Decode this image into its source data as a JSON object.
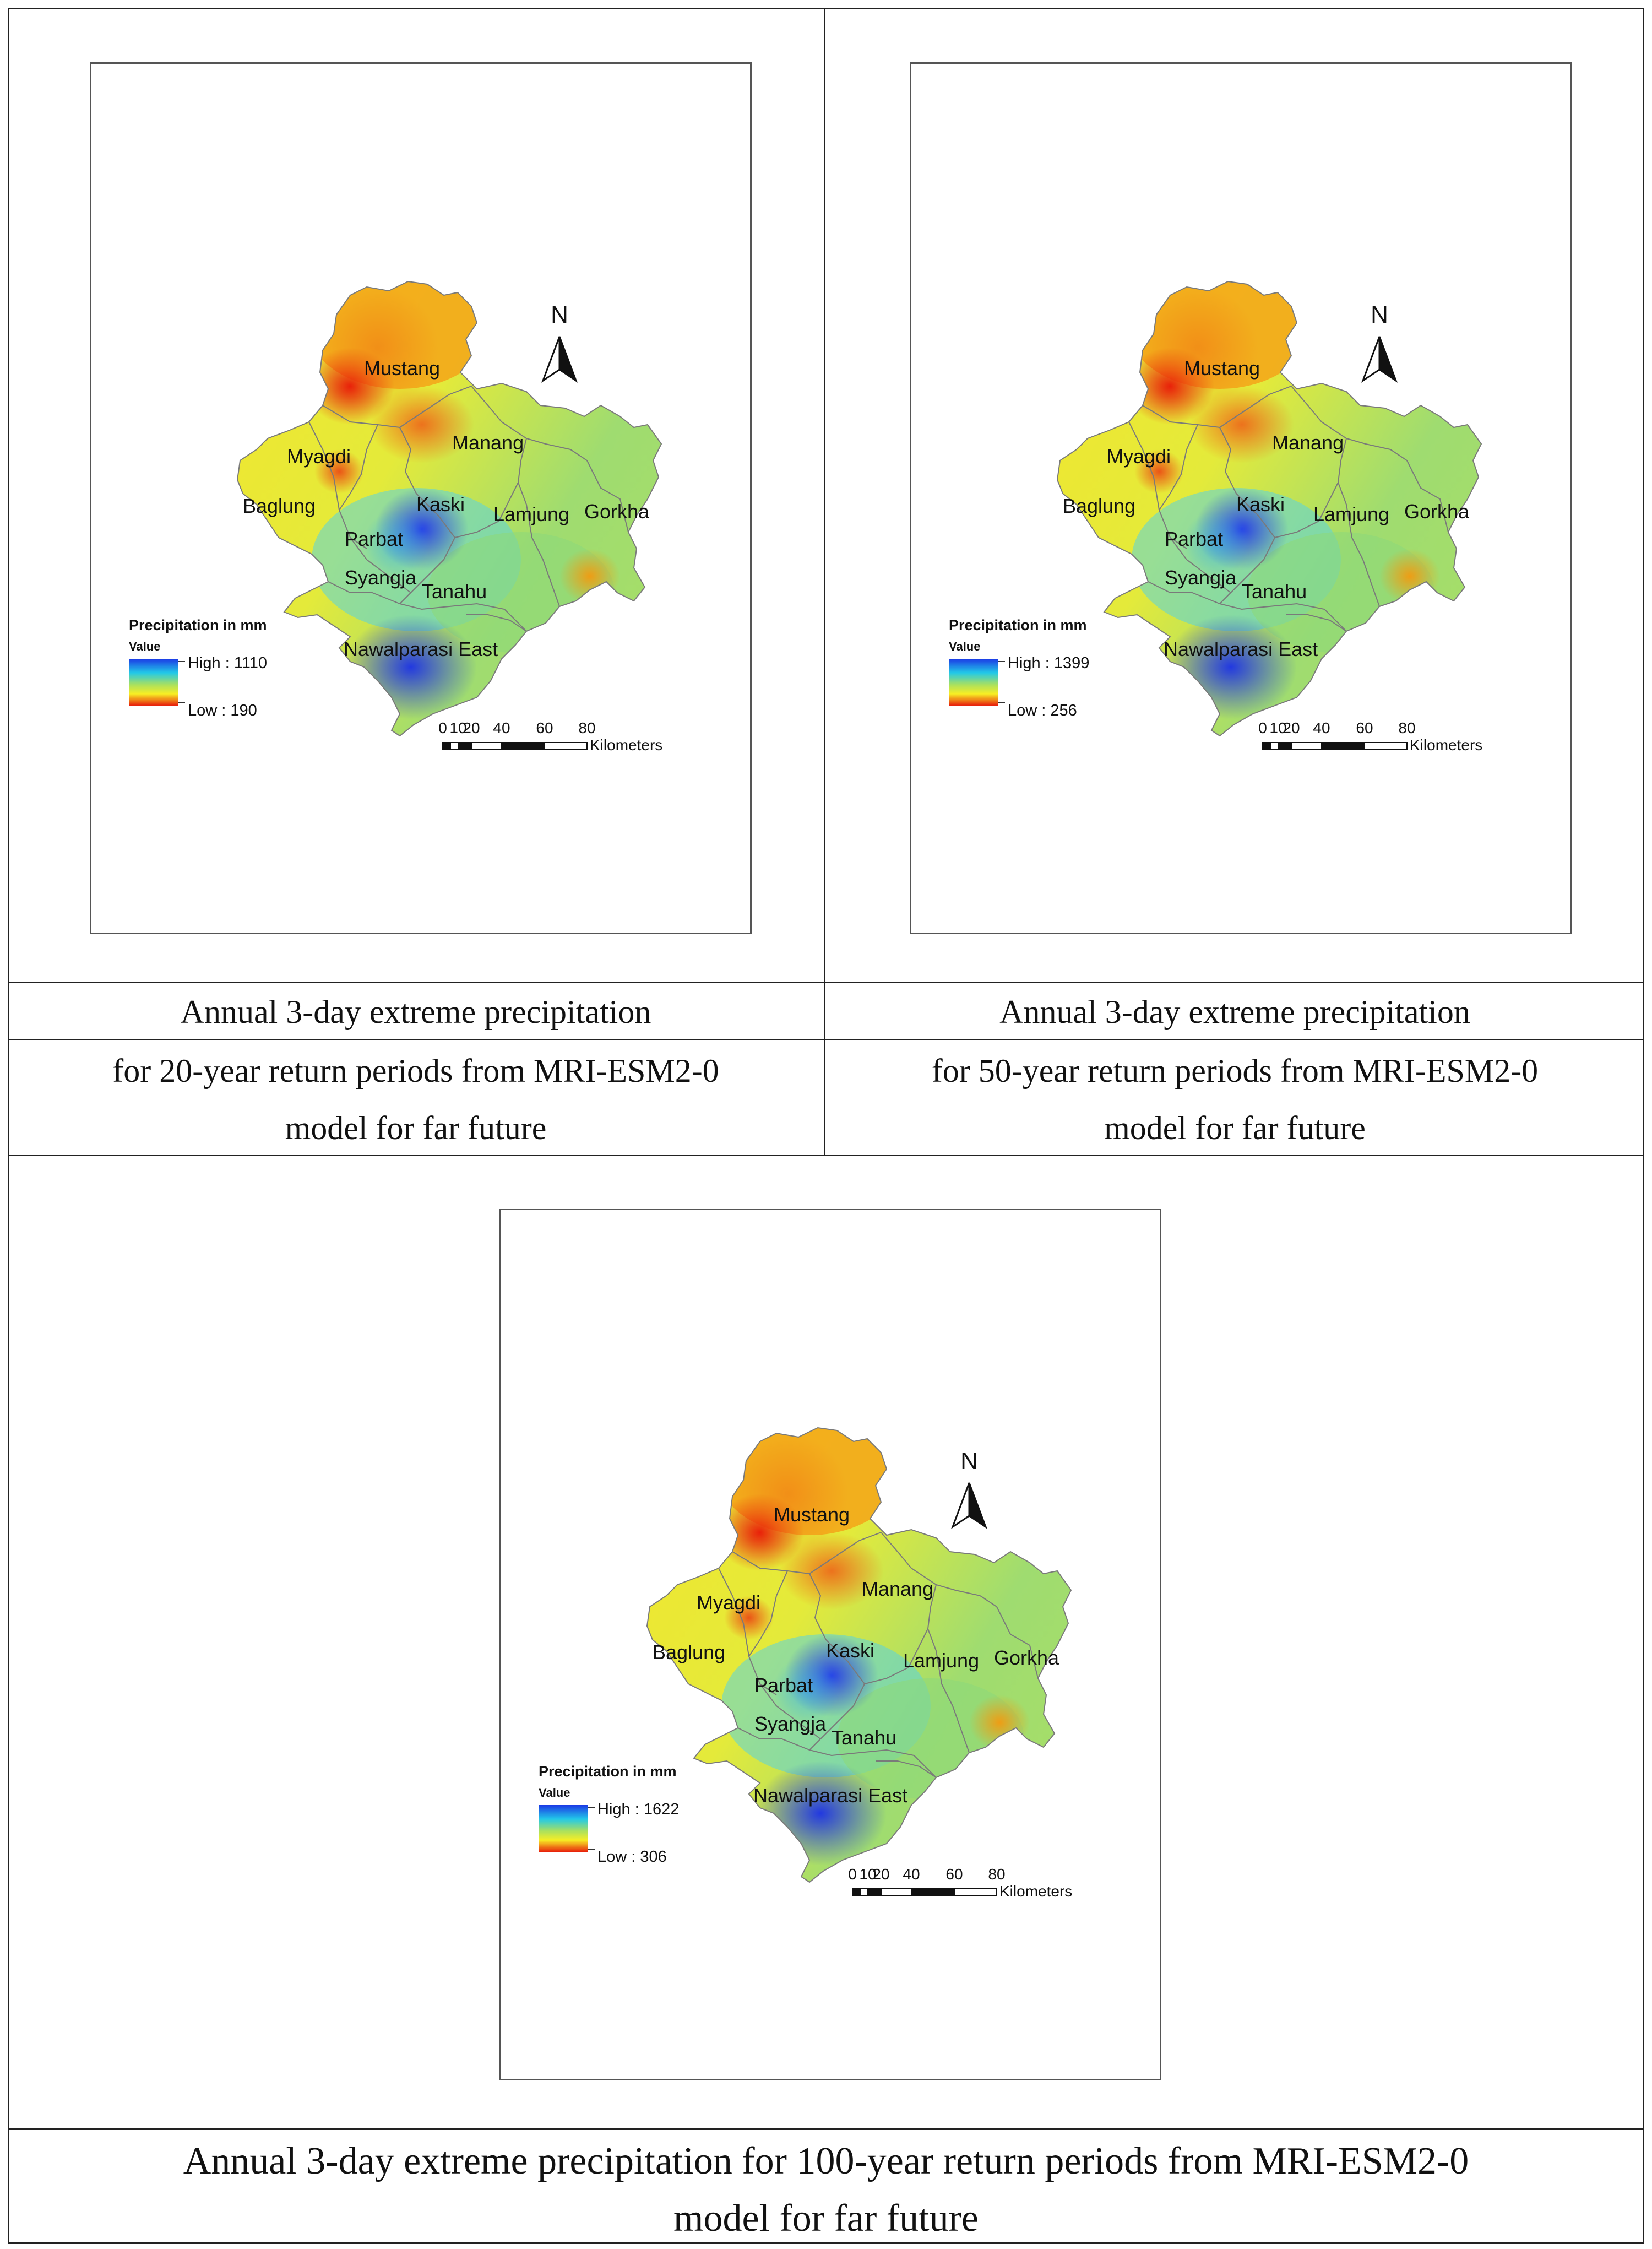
{
  "maps": [
    {
      "id": "rp20",
      "legend": {
        "title": "Precipitation in mm",
        "subtitle": "Value",
        "high_label": "High : 1110",
        "low_label": "Low : 190",
        "high": 1110,
        "low": 190
      },
      "caption_line1": "Annual 3-day extreme precipitation",
      "caption_line2": "for 20-year return periods from MRI-ESM2-0",
      "caption_line3": "model for far future"
    },
    {
      "id": "rp50",
      "legend": {
        "title": "Precipitation in mm",
        "subtitle": "Value",
        "high_label": "High : 1399",
        "low_label": "Low : 256",
        "high": 1399,
        "low": 256
      },
      "caption_line1": "Annual 3-day extreme precipitation",
      "caption_line2": "for 50-year return periods from MRI-ESM2-0",
      "caption_line3": "model for far future"
    },
    {
      "id": "rp100",
      "legend": {
        "title": "Precipitation in mm",
        "subtitle": "Value",
        "high_label": "High : 1622",
        "low_label": "Low : 306",
        "high": 1622,
        "low": 306
      },
      "caption_line1": "Annual 3-day extreme precipitation for 100-year return periods from MRI-ESM2-0",
      "caption_line2": "model for far future"
    }
  ],
  "districts": {
    "mustang": "Mustang",
    "manang": "Manang",
    "myagdi": "Myagdi",
    "baglung": "Baglung",
    "kaski": "Kaski",
    "lamjung": "Lamjung",
    "gorkha": "Gorkha",
    "parbat": "Parbat",
    "syangja": "Syangja",
    "tanahu": "Tanahu",
    "nawalparasi": "Nawalparasi East"
  },
  "north_arrow": "N",
  "scale_bar": {
    "ticks": [
      "0",
      "10",
      "20",
      "40",
      "60",
      "80"
    ],
    "unit": "Kilometers"
  },
  "colors": {
    "high": "#1f3fe0",
    "low": "#e8200c",
    "mid": "#f3f02a",
    "green": "#9bd866"
  }
}
